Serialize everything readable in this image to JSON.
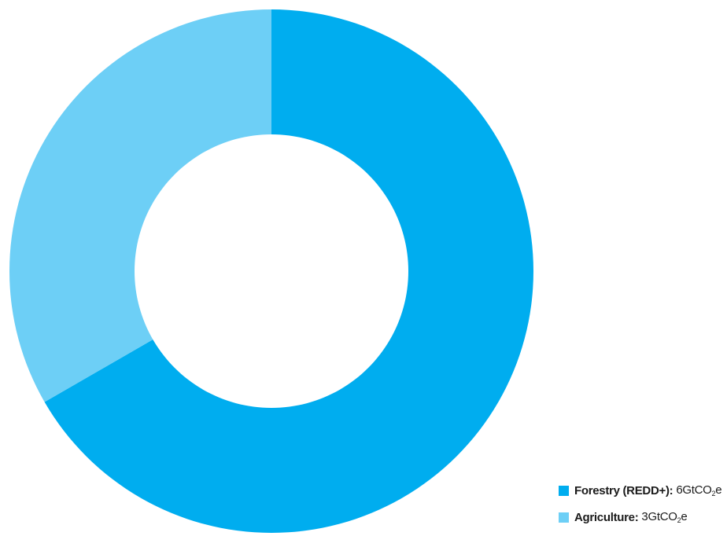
{
  "chart_data": {
    "type": "pie",
    "variant": "donut",
    "series": [
      {
        "name": "Forestry (REDD+)",
        "value": 6,
        "value_text": "6GtCO",
        "unit_subscript": "2",
        "unit_suffix": "e",
        "color": "#00adef"
      },
      {
        "name": "Agriculture",
        "value": 3,
        "value_text": "3GtCO",
        "unit_subscript": "2",
        "unit_suffix": "e",
        "color": "#6dcff6"
      }
    ],
    "legend_position": "bottom-right"
  }
}
